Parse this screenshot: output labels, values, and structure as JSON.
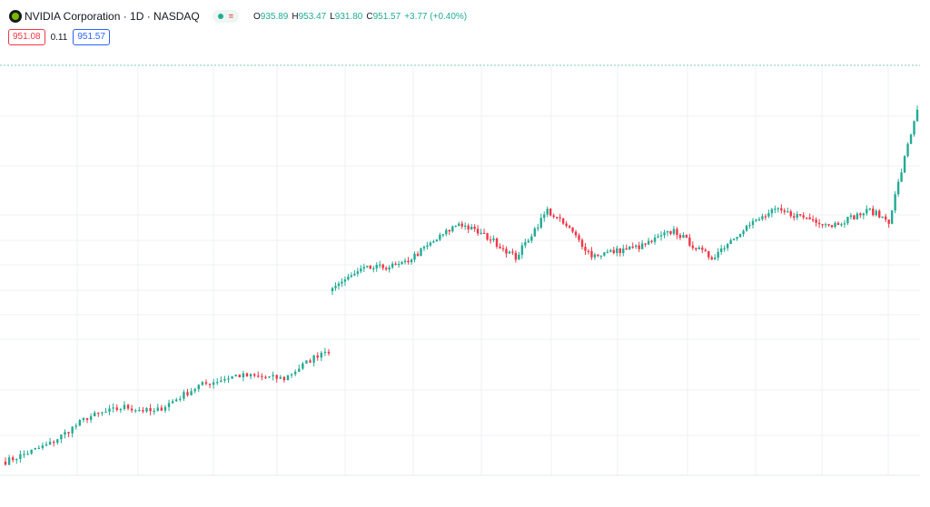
{
  "header": {
    "title": "NVIDIA Corporation · 1D · NASDAQ",
    "ohlc": [
      {
        "k": "O",
        "v": "935.89"
      },
      {
        "k": "H",
        "v": "953.47"
      },
      {
        "k": "L",
        "v": "931.80"
      },
      {
        "k": "C",
        "v": "951.57"
      }
    ],
    "change": "+3.77 (+0.40%)",
    "bid": "951.08",
    "spread": "0.11",
    "ask": "951.57"
  },
  "colors": {
    "up": "#22ab94",
    "down": "#f23645",
    "grid": "#eef0f3",
    "dotted": "#7fc9b8",
    "accent": "#2962ff"
  },
  "chart_data": {
    "type": "candlestick",
    "ylim": [
      600,
      990
    ],
    "segment1": {
      "start": 610,
      "end": 774,
      "count": 88,
      "pivots": [
        [
          0,
          613
        ],
        [
          12,
          630
        ],
        [
          22,
          655
        ],
        [
          32,
          665
        ],
        [
          40,
          660
        ],
        [
          52,
          685
        ],
        [
          62,
          695
        ],
        [
          75,
          692
        ],
        [
          87,
          722
        ]
      ],
      "last_close": 716
    },
    "segment2": {
      "count": 186,
      "pivots": [
        [
          0,
          779
        ],
        [
          10,
          796
        ],
        [
          22,
          800
        ],
        [
          40,
          840
        ],
        [
          50,
          825
        ],
        [
          58,
          807
        ],
        [
          68,
          852
        ],
        [
          75,
          834
        ],
        [
          82,
          809
        ],
        [
          98,
          818
        ],
        [
          108,
          833
        ],
        [
          116,
          814
        ],
        [
          120,
          807
        ],
        [
          130,
          835
        ],
        [
          140,
          852
        ],
        [
          150,
          845
        ],
        [
          158,
          838
        ],
        [
          170,
          852
        ],
        [
          176,
          842
        ],
        [
          185,
          949
        ]
      ]
    }
  }
}
